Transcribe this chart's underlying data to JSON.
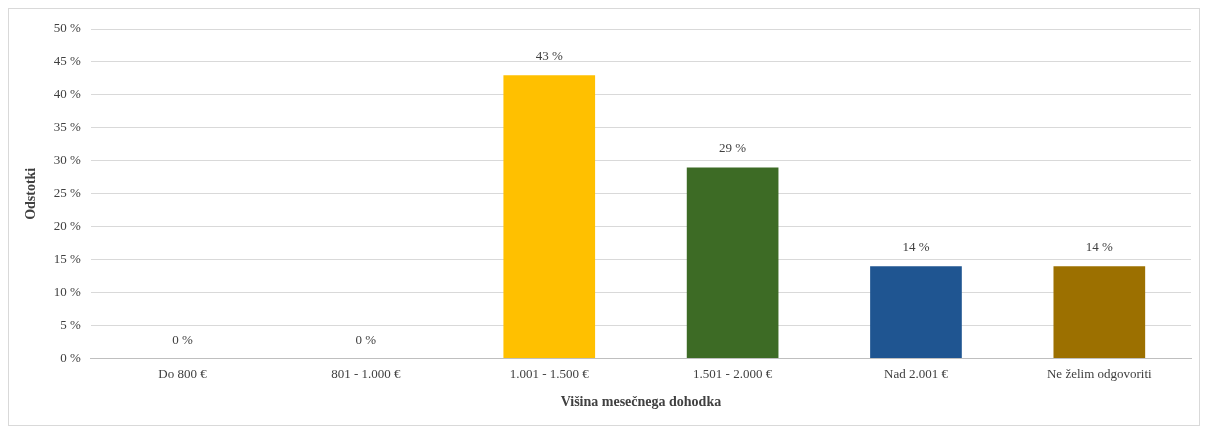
{
  "chart_data": {
    "type": "bar",
    "xlabel": "Višina mesečnega dohodka",
    "ylabel": "Odstotki",
    "categories": [
      "Do 800 €",
      "801 - 1.000 €",
      "1.001 - 1.500 €",
      "1.501 - 2.000 €",
      "Nad 2.001 €",
      "Ne želim odgovoriti"
    ],
    "values": [
      0,
      0,
      43,
      29,
      14,
      14
    ],
    "value_labels": [
      "0 %",
      "0 %",
      "43 %",
      "29 %",
      "14 %",
      "14 %"
    ],
    "colors": [
      "#ffc000",
      "#3d6b25",
      "#ffc000",
      "#3d6b25",
      "#1f5591",
      "#9c7000"
    ],
    "ylim": [
      0,
      50
    ],
    "yticks": [
      {
        "value": 0,
        "label": "0 %"
      },
      {
        "value": 5,
        "label": "5 %"
      },
      {
        "value": 10,
        "label": "10 %"
      },
      {
        "value": 15,
        "label": "15 %"
      },
      {
        "value": 20,
        "label": "20 %"
      },
      {
        "value": 25,
        "label": "25 %"
      },
      {
        "value": 30,
        "label": "30 %"
      },
      {
        "value": 35,
        "label": "35 %"
      },
      {
        "value": 40,
        "label": "40 %"
      },
      {
        "value": 45,
        "label": "45 %"
      },
      {
        "value": 50,
        "label": "50 %"
      }
    ],
    "grid": "y"
  }
}
